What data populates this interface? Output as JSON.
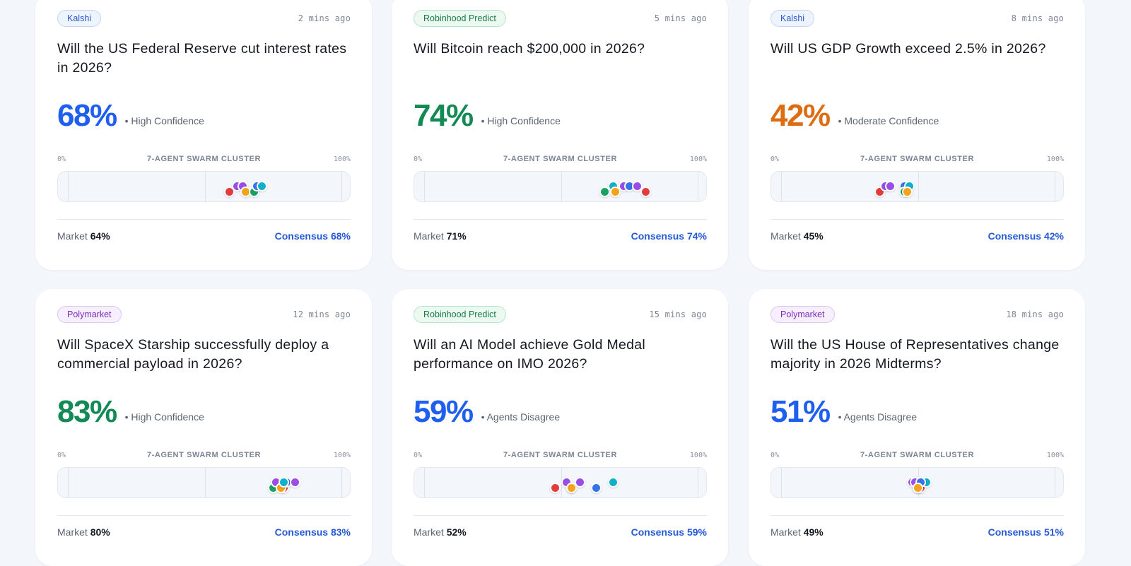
{
  "scale": {
    "min_label": "0%",
    "max_label": "100%",
    "title": "7-AGENT SWARM CLUSTER"
  },
  "colors": {
    "blue": "#1f5ff0",
    "green": "#128a55",
    "orange": "#de6c12",
    "agent_red": "#e23c3c",
    "agent_purple": "#9a4ee6",
    "agent_teal": "#12b0c8",
    "agent_green": "#17a35f",
    "agent_orange": "#f2a31a",
    "agent_blue": "#3673e6"
  },
  "cards": [
    {
      "source": "Kalshi",
      "source_key": "kalshi",
      "time": "2 mins ago",
      "question": "Will the US Federal Reserve cut interest rates in 2026?",
      "percent": "68%",
      "percent_color": "blue",
      "confidence": "• High Confidence",
      "market_label": "Market",
      "market_value": "64%",
      "consensus_label": "Consensus",
      "consensus_value": "68%",
      "agents": [
        {
          "color": "agent_red",
          "value": 59,
          "row": 1
        },
        {
          "color": "agent_purple",
          "value": 62,
          "row": 0
        },
        {
          "color": "agent_purple",
          "value": 64,
          "row": 0
        },
        {
          "color": "agent_orange",
          "value": 65,
          "row": 1
        },
        {
          "color": "agent_green",
          "value": 68,
          "row": 1
        },
        {
          "color": "agent_blue",
          "value": 69,
          "row": 0
        },
        {
          "color": "agent_teal",
          "value": 71,
          "row": 0
        }
      ]
    },
    {
      "source": "Robinhood Predict",
      "source_key": "robinhood",
      "time": "5 mins ago",
      "question": "Will Bitcoin reach $200,000 in 2026?",
      "percent": "74%",
      "percent_color": "green",
      "confidence": "• High Confidence",
      "market_label": "Market",
      "market_value": "71%",
      "consensus_label": "Consensus",
      "consensus_value": "74%",
      "agents": [
        {
          "color": "agent_green",
          "value": 66,
          "row": 1
        },
        {
          "color": "agent_teal",
          "value": 69,
          "row": 0
        },
        {
          "color": "agent_orange",
          "value": 70,
          "row": 1
        },
        {
          "color": "agent_purple",
          "value": 73,
          "row": 0
        },
        {
          "color": "agent_blue",
          "value": 75,
          "row": 0
        },
        {
          "color": "agent_purple",
          "value": 78,
          "row": 0
        },
        {
          "color": "agent_red",
          "value": 81,
          "row": 1
        }
      ]
    },
    {
      "source": "Kalshi",
      "source_key": "kalshi",
      "time": "8 mins ago",
      "question": "Will US GDP Growth exceed 2.5% in 2026?",
      "percent": "42%",
      "percent_color": "orange",
      "confidence": "• Moderate Confidence",
      "market_label": "Market",
      "market_value": "45%",
      "consensus_label": "Consensus",
      "consensus_value": "42%",
      "agents": [
        {
          "color": "agent_red",
          "value": 36,
          "row": 1
        },
        {
          "color": "agent_purple",
          "value": 38,
          "row": 0
        },
        {
          "color": "agent_purple",
          "value": 40,
          "row": 0
        },
        {
          "color": "agent_blue",
          "value": 45,
          "row": 0
        },
        {
          "color": "agent_teal",
          "value": 47,
          "row": 0
        },
        {
          "color": "agent_green",
          "value": 45,
          "row": 1
        },
        {
          "color": "agent_orange",
          "value": 46,
          "row": 1
        }
      ]
    },
    {
      "source": "Polymarket",
      "source_key": "polymarket",
      "time": "12 mins ago",
      "question": "Will SpaceX Starship successfully deploy a commercial payload in 2026?",
      "percent": "83%",
      "percent_color": "green",
      "confidence": "• High Confidence",
      "market_label": "Market",
      "market_value": "80%",
      "consensus_label": "Consensus",
      "consensus_value": "83%",
      "agents": [
        {
          "color": "agent_green",
          "value": 75,
          "row": 1
        },
        {
          "color": "agent_purple",
          "value": 76,
          "row": 0
        },
        {
          "color": "agent_red",
          "value": 79,
          "row": 1
        },
        {
          "color": "agent_orange",
          "value": 78,
          "row": 1
        },
        {
          "color": "agent_blue",
          "value": 80,
          "row": 0
        },
        {
          "color": "agent_purple",
          "value": 83,
          "row": 0
        },
        {
          "color": "agent_teal",
          "value": 79,
          "row": 0
        }
      ]
    },
    {
      "source": "Robinhood Predict",
      "source_key": "robinhood",
      "time": "15 mins ago",
      "question": "Will an AI Model achieve Gold Medal performance on IMO 2026?",
      "percent": "59%",
      "percent_color": "blue",
      "confidence": "• Agents Disagree",
      "market_label": "Market",
      "market_value": "52%",
      "consensus_label": "Consensus",
      "consensus_value": "59%",
      "agents": [
        {
          "color": "agent_red",
          "value": 48,
          "row": 1
        },
        {
          "color": "agent_purple",
          "value": 52,
          "row": 0
        },
        {
          "color": "agent_green",
          "value": 54,
          "row": 1
        },
        {
          "color": "agent_orange",
          "value": 54,
          "row": 1
        },
        {
          "color": "agent_purple",
          "value": 57,
          "row": 0
        },
        {
          "color": "agent_blue",
          "value": 63,
          "row": 1
        },
        {
          "color": "agent_teal",
          "value": 69,
          "row": 0
        }
      ]
    },
    {
      "source": "Polymarket",
      "source_key": "polymarket",
      "time": "18 mins ago",
      "question": "Will the US House of Representatives change majority in 2026 Midterms?",
      "percent": "51%",
      "percent_color": "blue",
      "confidence": "• Agents Disagree",
      "market_label": "Market",
      "market_value": "49%",
      "consensus_label": "Consensus",
      "consensus_value": "51%",
      "agents": [
        {
          "color": "agent_purple",
          "value": 48,
          "row": 0
        },
        {
          "color": "agent_purple",
          "value": 49,
          "row": 0
        },
        {
          "color": "agent_green",
          "value": 50,
          "row": 1
        },
        {
          "color": "agent_red",
          "value": 51,
          "row": 1
        },
        {
          "color": "agent_teal",
          "value": 53,
          "row": 0
        },
        {
          "color": "agent_blue",
          "value": 51,
          "row": 0
        },
        {
          "color": "agent_orange",
          "value": 50,
          "row": 1
        }
      ]
    }
  ]
}
